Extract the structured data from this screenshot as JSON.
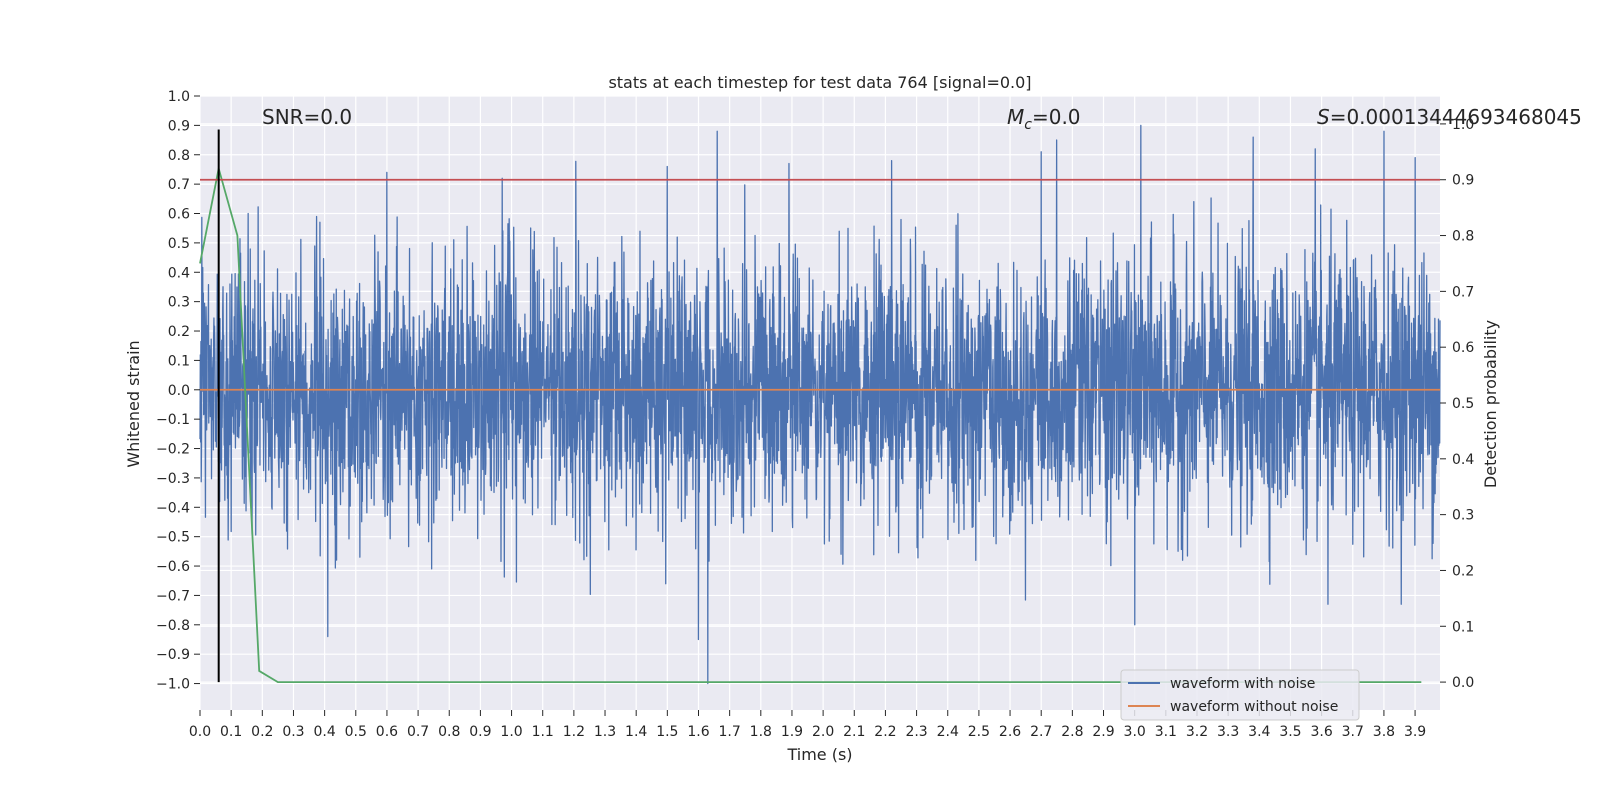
{
  "chart_data": {
    "type": "line",
    "title": "stats at each timestep for test data 764 [signal=0.0]",
    "xlabel": "Time (s)",
    "ylabel": "Whitened strain",
    "y2label": "Detection probability",
    "xlim": [
      0.0,
      3.98
    ],
    "ylim": [
      -1.09,
      1.0
    ],
    "y2lim": [
      -0.05,
      1.05
    ],
    "xticks": [
      "0.0",
      "0.1",
      "0.2",
      "0.3",
      "0.4",
      "0.5",
      "0.6",
      "0.7",
      "0.8",
      "0.9",
      "1.0",
      "1.1",
      "1.2",
      "1.3",
      "1.4",
      "1.5",
      "1.6",
      "1.7",
      "1.8",
      "1.9",
      "2.0",
      "2.1",
      "2.2",
      "2.3",
      "2.4",
      "2.5",
      "2.6",
      "2.7",
      "2.8",
      "2.9",
      "3.0",
      "3.1",
      "3.2",
      "3.3",
      "3.4",
      "3.5",
      "3.6",
      "3.7",
      "3.8",
      "3.9"
    ],
    "yticks": [
      "1.0",
      "0.9",
      "0.8",
      "0.7",
      "0.6",
      "0.5",
      "0.4",
      "0.3",
      "0.2",
      "0.1",
      "0.0",
      "−0.1",
      "−0.2",
      "−0.3",
      "−0.4",
      "−0.5",
      "−0.6",
      "−0.7",
      "−0.8",
      "−0.9",
      "−1.0"
    ],
    "y2ticks": [
      "1.0",
      "0.9",
      "0.8",
      "0.7",
      "0.6",
      "0.5",
      "0.4",
      "0.3",
      "0.2",
      "0.1",
      "0.0"
    ],
    "annotations": {
      "snr": "SNR=0.0",
      "mc_symbol": "M",
      "mc_sub": "c",
      "mc_value": "=0.0",
      "s_symbol": "S",
      "s_value": "=0.00013444693468045"
    },
    "legend": {
      "location": "lower-right",
      "entries": [
        {
          "label": "waveform with noise",
          "color": "#4c72b0"
        },
        {
          "label": "waveform without noise",
          "color": "#dd8452"
        }
      ]
    },
    "series": [
      {
        "name": "waveform with noise",
        "axis": "left",
        "color": "#4c72b0",
        "kind": "noise",
        "std": 0.22,
        "peaks": [
          {
            "t": 0.41,
            "v": -0.84
          },
          {
            "t": 0.6,
            "v": 0.74
          },
          {
            "t": 0.97,
            "v": 0.72
          },
          {
            "t": 1.5,
            "v": 0.76
          },
          {
            "t": 1.6,
            "v": -0.85
          },
          {
            "t": 1.63,
            "v": -1.0
          },
          {
            "t": 1.66,
            "v": 0.88
          },
          {
            "t": 1.89,
            "v": 0.77
          },
          {
            "t": 2.22,
            "v": 0.78
          },
          {
            "t": 2.7,
            "v": 0.81
          },
          {
            "t": 2.75,
            "v": 0.85
          },
          {
            "t": 3.02,
            "v": 0.9
          },
          {
            "t": 3.0,
            "v": -0.8
          },
          {
            "t": 3.38,
            "v": 0.86
          },
          {
            "t": 3.58,
            "v": 0.82
          },
          {
            "t": 3.8,
            "v": 0.88
          },
          {
            "t": 3.9,
            "v": 0.79
          },
          {
            "t": 3.62,
            "v": -0.73
          }
        ]
      },
      {
        "name": "waveform without noise",
        "axis": "left",
        "color": "#dd8452",
        "x": [
          0.0,
          3.98
        ],
        "y": [
          0.0,
          0.0
        ]
      },
      {
        "name": "detection probability",
        "axis": "right",
        "color": "#55a868",
        "x": [
          0.0,
          0.06,
          0.12,
          0.19,
          0.25,
          3.92
        ],
        "y": [
          0.75,
          0.92,
          0.8,
          0.02,
          0.0,
          0.0
        ]
      }
    ],
    "threshold": {
      "axis": "right",
      "value": 0.9,
      "color": "#c44e52"
    },
    "marker_line": {
      "x": 0.06,
      "y2_range": [
        0.0,
        0.99
      ],
      "color": "#000000"
    }
  }
}
